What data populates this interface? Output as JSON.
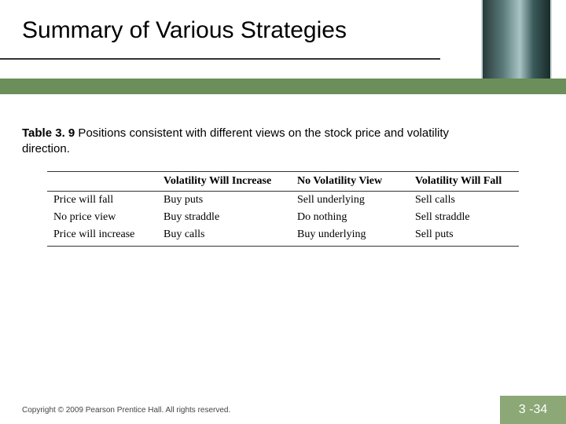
{
  "title": "Summary of Various Strategies",
  "caption_label": "Table 3. 9",
  "caption_text": "  Positions consistent with different views on the stock price and volatility direction.",
  "table": {
    "columns": [
      "",
      "Volatility Will Increase",
      "No Volatility View",
      "Volatility Will Fall"
    ],
    "rows": [
      [
        "Price will fall",
        "Buy puts",
        "Sell underlying",
        "Sell calls"
      ],
      [
        "No price view",
        "Buy straddle",
        "Do nothing",
        "Sell straddle"
      ],
      [
        "Price will increase",
        "Buy calls",
        "Buy underlying",
        "Sell puts"
      ]
    ]
  },
  "footer": "Copyright © 2009 Pearson Prentice Hall. All rights reserved.",
  "page_number": "3 -34",
  "colors": {
    "band": "#6b8e5a",
    "page_box": "#8ba876",
    "divider": "#333333",
    "text": "#000000",
    "footer_text": "#444444"
  }
}
